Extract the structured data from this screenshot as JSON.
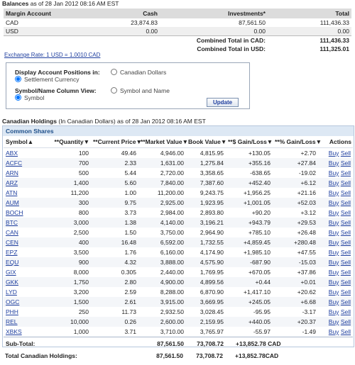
{
  "balances": {
    "title": "Balances",
    "as_of": "as of 28 Jan 2012 08:16 AM EST",
    "headers": [
      "Margin Account",
      "Cash",
      "Investments*",
      "Total"
    ],
    "rows": [
      [
        "CAD",
        "23,874.83",
        "87,561.50",
        "111,436.33"
      ],
      [
        "USD",
        "0.00",
        "0.00",
        "0.00"
      ]
    ],
    "combined": [
      [
        "Combined Total in CAD:",
        "111,436.33"
      ],
      [
        "Combined Total in USD:",
        "111,325.01"
      ]
    ],
    "exchange_rate": "Exchange Rate: 1 USD = 1.0010 CAD"
  },
  "options": {
    "rows": [
      {
        "label": "Display Account Positions in:",
        "choices": [
          "Canadian Dollars",
          "Settlement Currency"
        ],
        "selected": 1
      },
      {
        "label": "Symbol/Name Column View:",
        "choices": [
          "Symbol and Name",
          "Symbol"
        ],
        "selected": 1
      }
    ],
    "button": "Update"
  },
  "holdings": {
    "title": "Canadian Holdings",
    "subtitle": "(In Canadian Dollars) as of 28 Jan 2012 08:16 AM EST",
    "section": "Common Shares",
    "headers": [
      "Symbol▲",
      "**Quantity▼",
      "**Current Price▼",
      "**Market Value▼",
      "Book Value▼",
      "**$ Gain/Loss▼",
      "**% Gain/Loss▼",
      "Actions"
    ],
    "rows": [
      [
        "ABX",
        "100",
        "49.46",
        "4,946.00",
        "4,815.95",
        "+130.05",
        "+2.70",
        "Buy",
        "Sell"
      ],
      [
        "ACFC",
        "700",
        "2.33",
        "1,631.00",
        "1,275.84",
        "+355.16",
        "+27.84",
        "Buy",
        "Sell"
      ],
      [
        "ARN",
        "500",
        "5.44",
        "2,720.00",
        "3,358.65",
        "-638.65",
        "-19.02",
        "Buy",
        "Sell"
      ],
      [
        "ARZ",
        "1,400",
        "5.60",
        "7,840.00",
        "7,387.60",
        "+452.40",
        "+6.12",
        "Buy",
        "Sell"
      ],
      [
        "ATN",
        "11,200",
        "1.00",
        "11,200.00",
        "9,243.75",
        "+1,956.25",
        "+21.16",
        "Buy",
        "Sell"
      ],
      [
        "AUM",
        "300",
        "9.75",
        "2,925.00",
        "1,923.95",
        "+1,001.05",
        "+52.03",
        "Buy",
        "Sell"
      ],
      [
        "BOCH",
        "800",
        "3.73",
        "2,984.00",
        "2,893.80",
        "+90.20",
        "+3.12",
        "Buy",
        "Sell"
      ],
      [
        "BTC",
        "3,000",
        "1.38",
        "4,140.00",
        "3,196.21",
        "+943.79",
        "+29.53",
        "Buy",
        "Sell"
      ],
      [
        "CAN",
        "2,500",
        "1.50",
        "3,750.00",
        "2,964.90",
        "+785.10",
        "+26.48",
        "Buy",
        "Sell"
      ],
      [
        "CEN",
        "400",
        "16.48",
        "6,592.00",
        "1,732.55",
        "+4,859.45",
        "+280.48",
        "Buy",
        "Sell"
      ],
      [
        "EPZ",
        "3,500",
        "1.76",
        "6,160.00",
        "4,174.90",
        "+1,985.10",
        "+47.55",
        "Buy",
        "Sell"
      ],
      [
        "EQU",
        "900",
        "4.32",
        "3,888.00",
        "4,575.90",
        "-687.90",
        "-15.03",
        "Buy",
        "Sell"
      ],
      [
        "GIX",
        "8,000",
        "0.305",
        "2,440.00",
        "1,769.95",
        "+670.05",
        "+37.86",
        "Buy",
        "Sell"
      ],
      [
        "GKK",
        "1,750",
        "2.80",
        "4,900.00",
        "4,899.56",
        "+0.44",
        "+0.01",
        "Buy",
        "Sell"
      ],
      [
        "LYD",
        "3,200",
        "2.59",
        "8,288.00",
        "6,870.90",
        "+1,417.10",
        "+20.62",
        "Buy",
        "Sell"
      ],
      [
        "OGC",
        "1,500",
        "2.61",
        "3,915.00",
        "3,669.95",
        "+245.05",
        "+6.68",
        "Buy",
        "Sell"
      ],
      [
        "PHH",
        "250",
        "11.73",
        "2,932.50",
        "3,028.45",
        "-95.95",
        "-3.17",
        "Buy",
        "Sell"
      ],
      [
        "REL",
        "10,000",
        "0.26",
        "2,600.00",
        "2,159.95",
        "+440.05",
        "+20.37",
        "Buy",
        "Sell"
      ],
      [
        "XBKS",
        "1,000",
        "3.71",
        "3,710.00",
        "3,765.97",
        "-55.97",
        "-1.49",
        "Buy",
        "Sell"
      ]
    ],
    "subtotal": [
      "Sub-Total:",
      "87,561.50",
      "73,708.72",
      "+13,852.78 CAD"
    ],
    "total": [
      "Total Canadian Holdings:",
      "87,561.50",
      "73,708.72",
      "+13,852.78CAD"
    ]
  }
}
